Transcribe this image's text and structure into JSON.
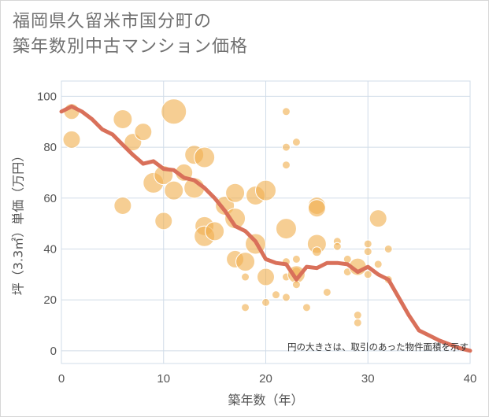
{
  "chart_data": {
    "type": "scatter",
    "title": [
      "福岡県久留米市国分町の",
      "築年数別中古マンション価格"
    ],
    "xlabel": "築年数（年）",
    "ylabel": "坪（3.3㎡）単価（万円）",
    "xlim": [
      0,
      40
    ],
    "ylim": [
      -5,
      106
    ],
    "xticks": [
      0,
      10,
      20,
      30,
      40
    ],
    "yticks": [
      0,
      20,
      40,
      60,
      80,
      100
    ],
    "grid": true,
    "note": "円の大きさは、取引のあった物件面積を示す",
    "colors": {
      "bubble": "#f0b050",
      "line": "#d9705a",
      "grid": "#d0dce8"
    },
    "series": [
      {
        "kind": "bubble",
        "points": [
          {
            "x": 1,
            "y": 94,
            "s": 10
          },
          {
            "x": 1,
            "y": 83,
            "s": 11
          },
          {
            "x": 6,
            "y": 91,
            "s": 12
          },
          {
            "x": 6,
            "y": 57,
            "s": 11
          },
          {
            "x": 7,
            "y": 82,
            "s": 11
          },
          {
            "x": 8,
            "y": 86,
            "s": 11
          },
          {
            "x": 9,
            "y": 66,
            "s": 13
          },
          {
            "x": 10,
            "y": 69,
            "s": 12
          },
          {
            "x": 10,
            "y": 51,
            "s": 11
          },
          {
            "x": 11,
            "y": 94,
            "s": 16
          },
          {
            "x": 11,
            "y": 63,
            "s": 12
          },
          {
            "x": 12,
            "y": 70,
            "s": 11
          },
          {
            "x": 13,
            "y": 77,
            "s": 12
          },
          {
            "x": 13,
            "y": 64,
            "s": 13
          },
          {
            "x": 14,
            "y": 76,
            "s": 13
          },
          {
            "x": 14,
            "y": 49,
            "s": 12
          },
          {
            "x": 14,
            "y": 45,
            "s": 13
          },
          {
            "x": 15,
            "y": 47,
            "s": 12
          },
          {
            "x": 16,
            "y": 57,
            "s": 12
          },
          {
            "x": 17,
            "y": 62,
            "s": 12
          },
          {
            "x": 17,
            "y": 52,
            "s": 13
          },
          {
            "x": 17,
            "y": 36,
            "s": 11
          },
          {
            "x": 18,
            "y": 35,
            "s": 12
          },
          {
            "x": 18,
            "y": 29,
            "s": 5
          },
          {
            "x": 18,
            "y": 17,
            "s": 5
          },
          {
            "x": 19,
            "y": 61,
            "s": 12
          },
          {
            "x": 19,
            "y": 42,
            "s": 13
          },
          {
            "x": 20,
            "y": 63,
            "s": 13
          },
          {
            "x": 20,
            "y": 29,
            "s": 11
          },
          {
            "x": 20,
            "y": 19,
            "s": 5
          },
          {
            "x": 21,
            "y": 22,
            "s": 5
          },
          {
            "x": 22,
            "y": 94,
            "s": 5
          },
          {
            "x": 22,
            "y": 80,
            "s": 5
          },
          {
            "x": 22,
            "y": 73,
            "s": 5
          },
          {
            "x": 22,
            "y": 48,
            "s": 13
          },
          {
            "x": 22,
            "y": 35,
            "s": 5
          },
          {
            "x": 22,
            "y": 29,
            "s": 5
          },
          {
            "x": 22,
            "y": 21,
            "s": 5
          },
          {
            "x": 23,
            "y": 82,
            "s": 5
          },
          {
            "x": 23,
            "y": 36,
            "s": 5
          },
          {
            "x": 23,
            "y": 31,
            "s": 6
          },
          {
            "x": 23,
            "y": 30,
            "s": 11
          },
          {
            "x": 23,
            "y": 26,
            "s": 5
          },
          {
            "x": 24,
            "y": 17,
            "s": 5
          },
          {
            "x": 25,
            "y": 57,
            "s": 11
          },
          {
            "x": 25,
            "y": 56,
            "s": 11
          },
          {
            "x": 25,
            "y": 42,
            "s": 12
          },
          {
            "x": 25,
            "y": 39,
            "s": 6
          },
          {
            "x": 26,
            "y": 23,
            "s": 5
          },
          {
            "x": 27,
            "y": 43,
            "s": 5
          },
          {
            "x": 27,
            "y": 41,
            "s": 5
          },
          {
            "x": 28,
            "y": 36,
            "s": 5
          },
          {
            "x": 28,
            "y": 31,
            "s": 5
          },
          {
            "x": 29,
            "y": 33,
            "s": 11
          },
          {
            "x": 29,
            "y": 14,
            "s": 5
          },
          {
            "x": 29,
            "y": 11,
            "s": 5
          },
          {
            "x": 30,
            "y": 42,
            "s": 5
          },
          {
            "x": 30,
            "y": 39,
            "s": 5
          },
          {
            "x": 30,
            "y": 30,
            "s": 5
          },
          {
            "x": 31,
            "y": 52,
            "s": 11
          },
          {
            "x": 31,
            "y": 34,
            "s": 5
          },
          {
            "x": 32,
            "y": 40,
            "s": 5
          },
          {
            "x": 32,
            "y": 28,
            "s": 5
          }
        ]
      },
      {
        "kind": "line",
        "x": [
          0,
          1,
          2,
          3,
          4,
          5,
          6,
          7,
          8,
          9,
          10,
          11,
          12,
          13,
          14,
          15,
          16,
          17,
          18,
          19,
          20,
          21,
          22,
          23,
          24,
          25,
          26,
          27,
          28,
          29,
          30,
          31,
          32,
          33,
          34,
          35,
          36,
          37,
          38,
          39,
          40
        ],
        "y": [
          94,
          96,
          94,
          91,
          87,
          85,
          81,
          77,
          73.5,
          74.5,
          71.5,
          71,
          68,
          67,
          64,
          60,
          55,
          49,
          47,
          43,
          36,
          34.5,
          34,
          28,
          33,
          32.5,
          34.5,
          34.5,
          34,
          31,
          33,
          30,
          28,
          21,
          14,
          8,
          6,
          4,
          2.5,
          1,
          0
        ]
      }
    ]
  }
}
